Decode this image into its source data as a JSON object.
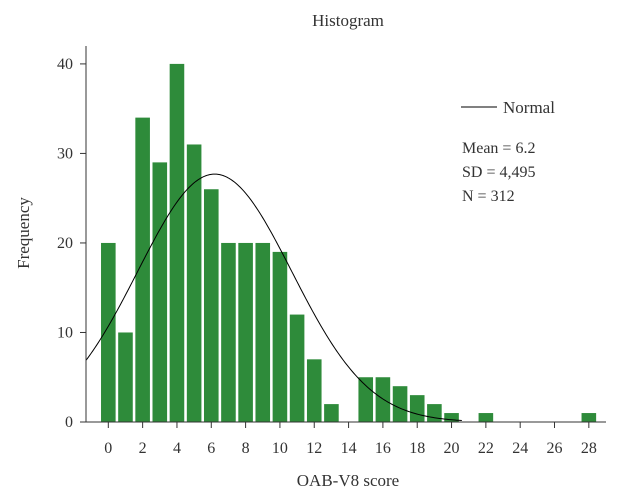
{
  "chart_data": {
    "type": "bar",
    "title": "Histogram",
    "xlabel": "OAB-V8 score",
    "ylabel": "Frequency",
    "x": [
      0,
      1,
      2,
      3,
      4,
      5,
      6,
      7,
      8,
      9,
      10,
      11,
      12,
      13,
      14,
      15,
      16,
      17,
      18,
      19,
      20,
      21,
      22,
      23,
      24,
      25,
      26,
      27,
      28
    ],
    "values": [
      20,
      10,
      34,
      29,
      40,
      31,
      26,
      20,
      20,
      20,
      19,
      12,
      7,
      2,
      0,
      5,
      5,
      4,
      3,
      2,
      1,
      0,
      1,
      0,
      0,
      0,
      0,
      0,
      1
    ],
    "x_ticks": [
      0,
      2,
      4,
      6,
      8,
      10,
      12,
      14,
      16,
      18,
      20,
      22,
      24,
      26,
      28
    ],
    "y_ticks": [
      0,
      10,
      20,
      30,
      40
    ],
    "xlim": [
      -1.3,
      29
    ],
    "ylim": [
      0,
      42
    ],
    "bar_color": "#2e8b3a",
    "curve_color": "#000000",
    "normal_curve": {
      "mean": 6.2,
      "sd": 4.495,
      "n": 312,
      "bin_width": 1
    },
    "legend": {
      "label": "Normal",
      "placement": "top-right"
    },
    "stats": {
      "mean": "Mean = 6.2",
      "sd": "SD = 4,495",
      "n": "N = 312"
    },
    "grid": false
  }
}
